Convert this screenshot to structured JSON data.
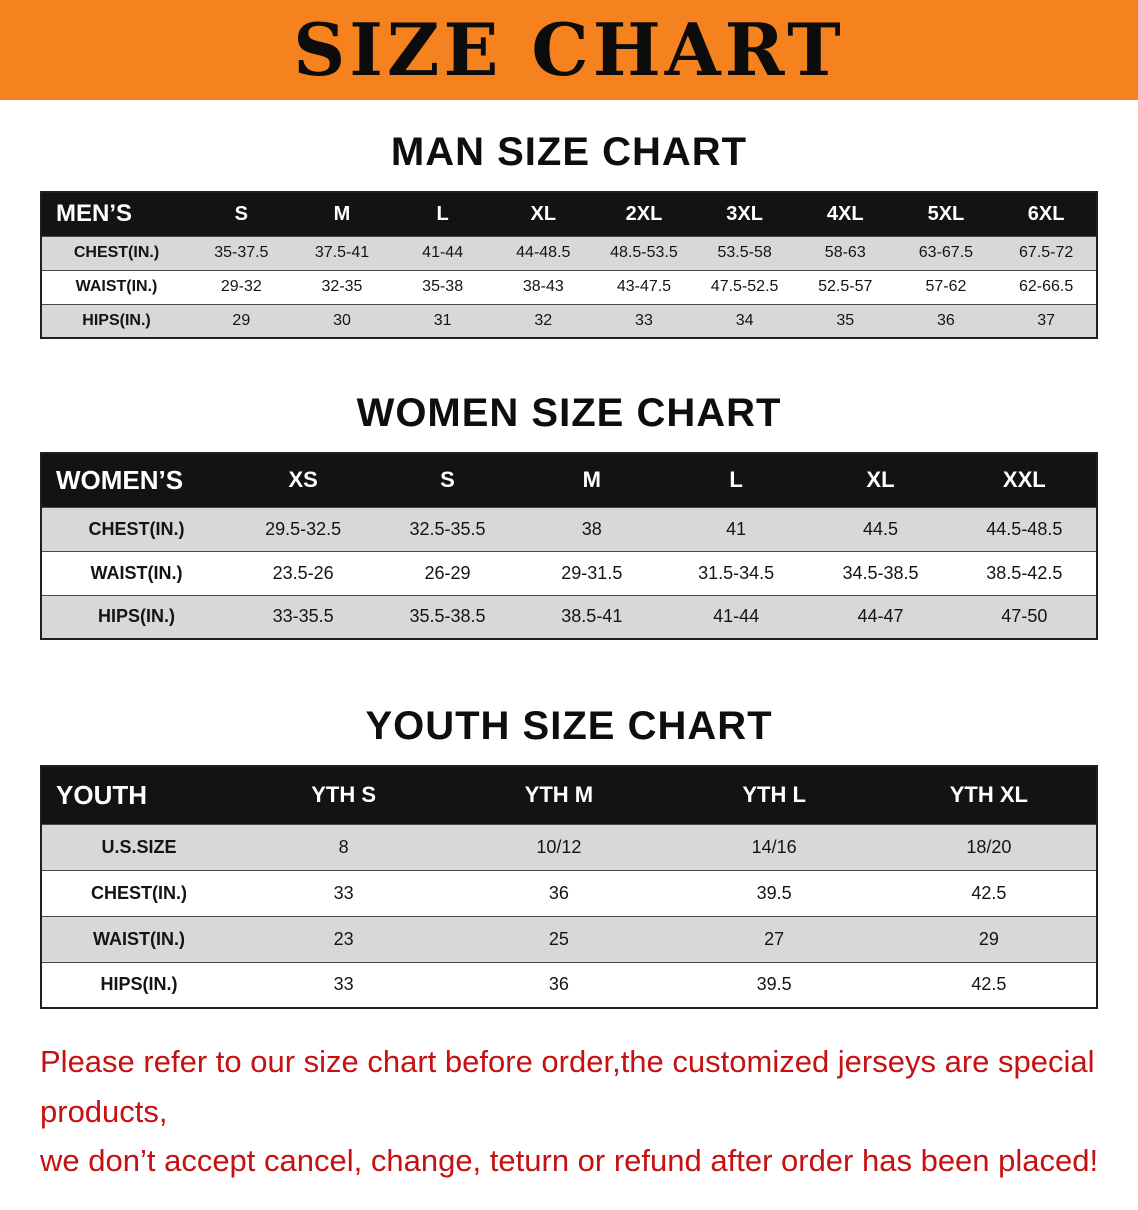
{
  "banner": {
    "title": "SIZE CHART"
  },
  "colors": {
    "banner_orange": "#f5821f",
    "header_black": "#131313",
    "row_gray": "#d8d8d8",
    "disclaimer_red": "#c51111"
  },
  "men": {
    "heading": "MAN SIZE CHART",
    "label": "MEN’S",
    "sizes": [
      "S",
      "M",
      "L",
      "XL",
      "2XL",
      "3XL",
      "4XL",
      "5XL",
      "6XL"
    ],
    "rows": [
      {
        "label": "CHEST(IN.)",
        "values": [
          "35-37.5",
          "37.5-41",
          "41-44",
          "44-48.5",
          "48.5-53.5",
          "53.5-58",
          "58-63",
          "63-67.5",
          "67.5-72"
        ]
      },
      {
        "label": "WAIST(IN.)",
        "values": [
          "29-32",
          "32-35",
          "35-38",
          "38-43",
          "43-47.5",
          "47.5-52.5",
          "52.5-57",
          "57-62",
          "62-66.5"
        ]
      },
      {
        "label": "HIPS(IN.)",
        "values": [
          "29",
          "30",
          "31",
          "32",
          "33",
          "34",
          "35",
          "36",
          "37"
        ]
      }
    ]
  },
  "women": {
    "heading": "WOMEN SIZE CHART",
    "label": "WOMEN’S",
    "sizes": [
      "XS",
      "S",
      "M",
      "L",
      "XL",
      "XXL"
    ],
    "rows": [
      {
        "label": "CHEST(IN.)",
        "values": [
          "29.5-32.5",
          "32.5-35.5",
          "38",
          "41",
          "44.5",
          "44.5-48.5"
        ]
      },
      {
        "label": "WAIST(IN.)",
        "values": [
          "23.5-26",
          "26-29",
          "29-31.5",
          "31.5-34.5",
          "34.5-38.5",
          "38.5-42.5"
        ]
      },
      {
        "label": "HIPS(IN.)",
        "values": [
          "33-35.5",
          "35.5-38.5",
          "38.5-41",
          "41-44",
          "44-47",
          "47-50"
        ]
      }
    ]
  },
  "youth": {
    "heading": "YOUTH SIZE CHART",
    "label": "YOUTH",
    "sizes": [
      "YTH S",
      "YTH M",
      "YTH L",
      "YTH XL"
    ],
    "rows": [
      {
        "label": "U.S.SIZE",
        "values": [
          "8",
          "10/12",
          "14/16",
          "18/20"
        ]
      },
      {
        "label": "CHEST(IN.)",
        "values": [
          "33",
          "36",
          "39.5",
          "42.5"
        ]
      },
      {
        "label": "WAIST(IN.)",
        "values": [
          "23",
          "25",
          "27",
          "29"
        ]
      },
      {
        "label": "HIPS(IN.)",
        "values": [
          "33",
          "36",
          "39.5",
          "42.5"
        ]
      }
    ]
  },
  "disclaimer": {
    "line1": "Please refer to our size chart before order,the customized jerseys are special products,",
    "line2": "we don’t accept cancel, change, teturn or refund after order has been placed!"
  }
}
